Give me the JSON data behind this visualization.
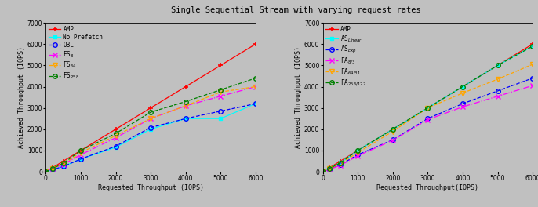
{
  "title": "Single Sequential Stream with varying request rates",
  "background_color": "#c0c0c0",
  "x_values": [
    0,
    200,
    500,
    1000,
    2000,
    3000,
    4000,
    5000,
    6000
  ],
  "left": {
    "series": [
      {
        "label": "AMP",
        "color": "red",
        "linestyle": "-",
        "marker": "+",
        "markersize": 4,
        "markeredgewidth": 1.2,
        "y": [
          0,
          200,
          500,
          1000,
          2000,
          3000,
          4000,
          5000,
          6000
        ]
      },
      {
        "label": "No Prefetch",
        "color": "cyan",
        "linestyle": "-",
        "marker": "s",
        "markersize": 3.5,
        "markerfacecolor": "cyan",
        "y": [
          0,
          100,
          250,
          600,
          1150,
          2000,
          2500,
          2500,
          3200
        ]
      },
      {
        "label": "OBL",
        "color": "blue",
        "linestyle": "--",
        "marker": "o",
        "markersize": 4,
        "markerfacecolor": "none",
        "y": [
          0,
          100,
          250,
          600,
          1200,
          2080,
          2500,
          2850,
          3200
        ]
      },
      {
        "label": "FS$_8$",
        "color": "magenta",
        "linestyle": "-.",
        "marker": "x",
        "markersize": 4,
        "markeredgewidth": 1.0,
        "y": [
          0,
          150,
          350,
          800,
          1600,
          2500,
          3100,
          3550,
          4000
        ]
      },
      {
        "label": "FS$_{64}$",
        "color": "orange",
        "linestyle": "--",
        "marker": "v",
        "markersize": 4,
        "markerfacecolor": "none",
        "y": [
          0,
          150,
          370,
          900,
          1700,
          2500,
          3100,
          3750,
          4000
        ]
      },
      {
        "label": "FS$_{258}$",
        "color": "green",
        "linestyle": "--",
        "marker": "o",
        "markersize": 4,
        "markerfacecolor": "none",
        "y": [
          0,
          160,
          400,
          1000,
          1800,
          2800,
          3300,
          3850,
          4400
        ]
      }
    ],
    "xlabel": "Requested Throughput (IOPS)",
    "ylabel": "Achieved Throughput (IOPS)",
    "xlim": [
      0,
      6000
    ],
    "ylim": [
      0,
      7000
    ],
    "yticks": [
      0,
      1000,
      2000,
      3000,
      4000,
      5000,
      6000,
      7000
    ],
    "xticks": [
      0,
      1000,
      2000,
      3000,
      4000,
      5000,
      6000
    ]
  },
  "right": {
    "series": [
      {
        "label": "AMP",
        "color": "red",
        "linestyle": "-",
        "marker": "+",
        "markersize": 4,
        "markeredgewidth": 1.2,
        "y": [
          0,
          200,
          500,
          1000,
          2000,
          3000,
          4000,
          5000,
          6000
        ]
      },
      {
        "label": "AS$_{Linear}$",
        "color": "cyan",
        "linestyle": "-",
        "marker": "s",
        "markersize": 3.5,
        "markerfacecolor": "cyan",
        "y": [
          0,
          170,
          430,
          1000,
          2000,
          3000,
          4000,
          5000,
          5900
        ]
      },
      {
        "label": "AS$_{Exp}$",
        "color": "blue",
        "linestyle": "--",
        "marker": "o",
        "markersize": 4,
        "markerfacecolor": "none",
        "y": [
          0,
          130,
          330,
          800,
          1500,
          2500,
          3200,
          3800,
          4400
        ]
      },
      {
        "label": "FA$_{8/3}$",
        "color": "magenta",
        "linestyle": "-.",
        "marker": "x",
        "markersize": 4,
        "markeredgewidth": 1.0,
        "y": [
          0,
          120,
          300,
          750,
          1480,
          2450,
          3050,
          3550,
          4050
        ]
      },
      {
        "label": "FA$_{64/31}$",
        "color": "orange",
        "linestyle": "--",
        "marker": "v",
        "markersize": 4,
        "markerfacecolor": "none",
        "y": [
          0,
          150,
          380,
          900,
          1900,
          3000,
          3700,
          4350,
          5050
        ]
      },
      {
        "label": "FA$_{256/127}$",
        "color": "green",
        "linestyle": "--",
        "marker": "o",
        "markersize": 4,
        "markerfacecolor": "none",
        "y": [
          0,
          160,
          420,
          1000,
          2000,
          3000,
          4000,
          5000,
          5900
        ]
      }
    ],
    "xlabel": "Requested Throughput(IOPS)",
    "ylabel": "Achieved Throughput (IOPS)",
    "xlim": [
      0,
      6000
    ],
    "ylim": [
      0,
      7000
    ],
    "yticks": [
      0,
      1000,
      2000,
      3000,
      4000,
      5000,
      6000,
      7000
    ],
    "xticks": [
      0,
      1000,
      2000,
      3000,
      4000,
      5000,
      6000
    ]
  }
}
